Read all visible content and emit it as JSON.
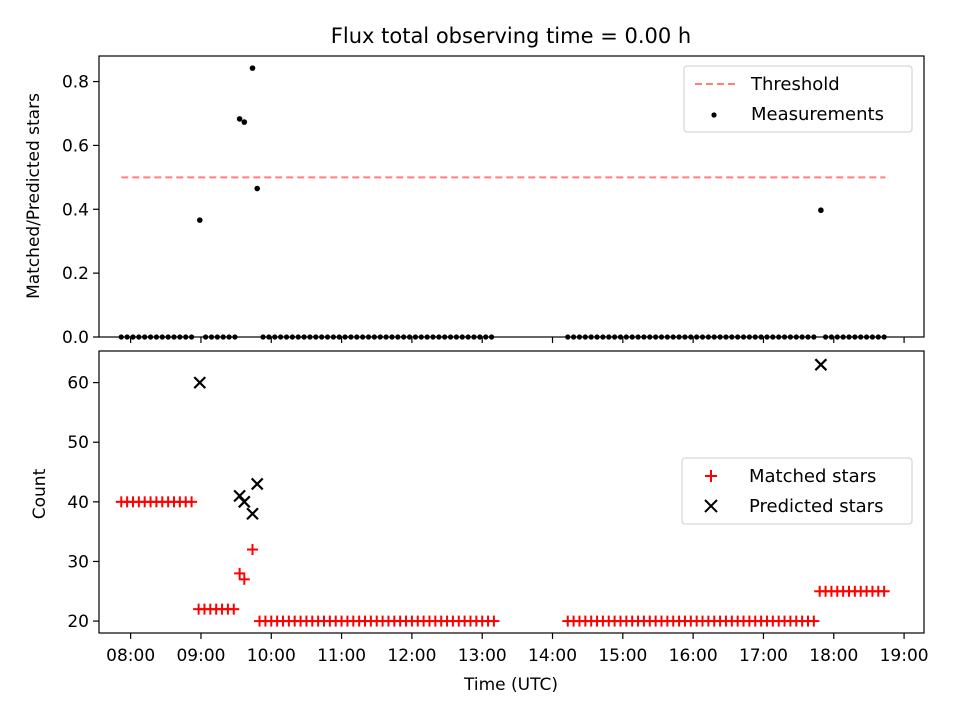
{
  "chart_data": [
    {
      "type": "scatter",
      "title": "Flux total observing time = 0.00 h",
      "xlabel": "",
      "ylabel": "Matched/Predicted stars",
      "xlim": [
        "07:33",
        "19:17"
      ],
      "ylim": [
        0,
        0.88
      ],
      "yticks": [
        "0.0",
        "0.2",
        "0.4",
        "0.6",
        "0.8"
      ],
      "ytick_values": [
        0,
        0.2,
        0.4,
        0.6,
        0.8
      ],
      "legend": {
        "position": "upper-right",
        "entries": [
          "Threshold",
          "Measurements"
        ]
      },
      "threshold": {
        "name": "Threshold",
        "value": 0.5,
        "x_start": "07:52",
        "x_end": "18:44",
        "color": "#ff7f7f",
        "style": "dashed"
      },
      "measurements_color": "#000000",
      "nonzero_points": [
        {
          "x": "08:59",
          "y": 0.366
        },
        {
          "x": "09:33",
          "y": 0.683
        },
        {
          "x": "09:37",
          "y": 0.673
        },
        {
          "x": "09:44",
          "y": 0.842
        },
        {
          "x": "09:48",
          "y": 0.465
        },
        {
          "x": "17:49",
          "y": 0.397
        }
      ],
      "zero_runs": [
        {
          "start": "07:52",
          "end": "08:52",
          "step_min": 5
        },
        {
          "start": "09:04",
          "end": "09:30",
          "step_min": 5
        },
        {
          "start": "09:53",
          "end": "13:10",
          "step_min": 5
        },
        {
          "start": "14:13",
          "end": "17:45",
          "step_min": 5
        },
        {
          "start": "17:53",
          "end": "18:43",
          "step_min": 5
        }
      ]
    },
    {
      "type": "scatter",
      "title": "",
      "xlabel": "Time (UTC)",
      "ylabel": "Count",
      "xlim": [
        "07:33",
        "19:17"
      ],
      "ylim": [
        18.0,
        65.3
      ],
      "yticks": [
        "20",
        "30",
        "40",
        "50",
        "60"
      ],
      "ytick_values": [
        20,
        30,
        40,
        50,
        60
      ],
      "xticks": [
        "08:00",
        "09:00",
        "10:00",
        "11:00",
        "12:00",
        "13:00",
        "14:00",
        "15:00",
        "16:00",
        "17:00",
        "18:00",
        "19:00"
      ],
      "legend": {
        "position": "center-right",
        "entries": [
          "Matched stars",
          "Predicted stars"
        ]
      },
      "matched_color": "#ff0000",
      "predicted_color": "#000000",
      "matched_runs": [
        {
          "start": "07:52",
          "end": "08:52",
          "step_min": 5,
          "value": 40
        },
        {
          "start": "08:58",
          "end": "09:31",
          "step_min": 5,
          "value": 22
        },
        {
          "start": "09:50",
          "end": "13:10",
          "step_min": 5,
          "value": 20
        },
        {
          "start": "14:13",
          "end": "17:45",
          "step_min": 5,
          "value": 20
        },
        {
          "start": "17:48",
          "end": "18:43",
          "step_min": 5,
          "value": 25
        }
      ],
      "matched_points": [
        {
          "x": "09:33",
          "y": 28
        },
        {
          "x": "09:37",
          "y": 27
        },
        {
          "x": "09:44",
          "y": 32
        }
      ],
      "predicted_points": [
        {
          "x": "08:59",
          "y": 60
        },
        {
          "x": "09:33",
          "y": 41
        },
        {
          "x": "09:37",
          "y": 40
        },
        {
          "x": "09:44",
          "y": 38
        },
        {
          "x": "09:48",
          "y": 43
        },
        {
          "x": "17:49",
          "y": 63
        }
      ]
    }
  ]
}
